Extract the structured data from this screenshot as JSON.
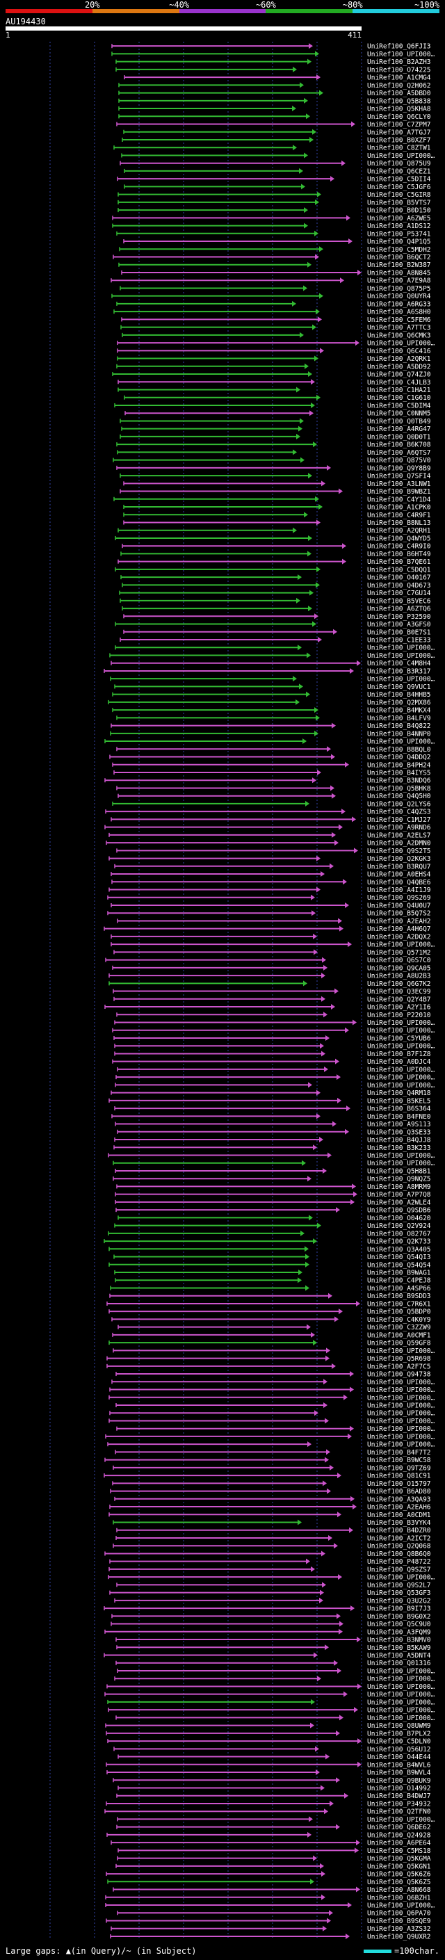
{
  "scale": {
    "labels": [
      "20%",
      "~40%",
      "~60%",
      "~80%",
      "~100%"
    ],
    "colors": [
      "#dd1111",
      "#dd7711",
      "#9933cc",
      "#22aa22",
      "#22ccdd"
    ]
  },
  "query": {
    "id": "AU194430",
    "start": "1",
    "end": "411"
  },
  "legend": {
    "gap_text": "Large gaps: ▲(in Query)/~ (in Subject)",
    "scale_text": "=100char."
  },
  "colors": {
    "magenta": "#cc55cc",
    "green": "#33bb33",
    "purple_line": "#5566ee",
    "grid": "#3344aa"
  },
  "chart_data": {
    "type": "table",
    "hit_ids": [
      "UniRef100_Q6FJI3",
      "UniRef100_UPI000…",
      "UniRef100_B2AZH3",
      "UniRef100_O74225",
      "UniRef100_A1CMG4",
      "UniRef100_Q2H062",
      "UniRef100_A5DBD0",
      "UniRef100_Q5B838",
      "UniRef100_Q5KHA8",
      "UniRef100_Q6CLY0",
      "UniRef100_C7ZPM7",
      "UniRef100_A7TGJ7",
      "UniRef100_B0XZF7",
      "UniRef100_C8ZTW1",
      "UniRef100_UPI000…",
      "UniRef100_Q875U9",
      "UniRef100_Q6CEZ1",
      "UniRef100_C5DII4",
      "UniRef100_C5JGF6",
      "UniRef100_C5GIR8",
      "UniRef100_B5VTS7",
      "UniRef100_B0D150",
      "UniRef100_A6ZWE5",
      "UniRef100_A1DS12",
      "UniRef100_P53741",
      "UniRef100_Q4P1Q5",
      "UniRef100_C5MDH2",
      "UniRef100_B6QCT2",
      "UniRef100_B2W387",
      "UniRef100_A8N845",
      "UniRef100_A7E9A8",
      "UniRef100_Q875P5",
      "UniRef100_Q0UYR4",
      "UniRef100_A6RG33",
      "UniRef100_A6S8H0",
      "UniRef100_C5FEM6",
      "UniRef100_A7TTC3",
      "UniRef100_Q6CMK3",
      "UniRef100_UPI000…",
      "UniRef100_Q6C416",
      "UniRef100_A2QRK1",
      "UniRef100_A5DD92",
      "UniRef100_Q74ZJ0",
      "UniRef100_C4JLB3",
      "UniRef100_C1HA21",
      "UniRef100_C1G610",
      "UniRef100_C5DIM4",
      "UniRef100_C0NNM5",
      "UniRef100_Q0TB49",
      "UniRef100_A4RG47",
      "UniRef100_Q0D0T1",
      "UniRef100_B6K708",
      "UniRef100_A6QTS7",
      "UniRef100_Q875V0",
      "UniRef100_Q9Y8B9",
      "UniRef100_Q7SFI4",
      "UniRef100_A3LNW1",
      "UniRef100_B9WBZ1",
      "UniRef100_C4Y1D4",
      "UniRef100_A1CPK0",
      "UniRef100_C4R9F1",
      "UniRef100_B8NL13",
      "UniRef100_A2QRH1",
      "UniRef100_Q4WYD5",
      "UniRef100_C4R9I0",
      "UniRef100_B6HT49",
      "UniRef100_B7QE61",
      "UniRef100_C5DQQ1",
      "UniRef100_O40167",
      "UniRef100_Q4D673",
      "UniRef100_C7GU14",
      "UniRef100_B5VEC6",
      "UniRef100_A6ZTQ6",
      "UniRef100_P32590",
      "UniRef100_A3GFS0",
      "UniRef100_B0E7S1",
      "UniRef100_C1EE33",
      "UniRef100_UPI000…",
      "UniRef100_UPI000…",
      "UniRef100_C4M8H4",
      "UniRef100_B3R317",
      "UniRef100_UPI000…",
      "UniRef100_Q9VUC1",
      "UniRef100_B4HHB5",
      "UniRef100_Q2MX86",
      "UniRef100_B4MKX4",
      "UniRef100_B4LFV9",
      "UniRef100_B4Q822",
      "UniRef100_B4NNP0",
      "UniRef100_UPI000…",
      "UniRef100_B8BQL0",
      "UniRef100_Q4DDQ2",
      "UniRef100_B4PH24",
      "UniRef100_B4IYS5",
      "UniRef100_B3NDQ6",
      "UniRef100_Q5BHK8",
      "UniRef100_Q4Q5H0",
      "UniRef100_Q2LYS6",
      "UniRef100_C4QZS3",
      "UniRef100_C1MJ27",
      "UniRef100_A9RND6",
      "UniRef100_A2ELS7",
      "UniRef100_A2DMN0",
      "UniRef100_Q9S2T5",
      "UniRef100_Q2KGK3",
      "UniRef100_B3RQU7",
      "UniRef100_A0EHS4",
      "UniRef100_Q4QBE6",
      "UniRef100_A4I1J9",
      "UniRef100_Q9S269",
      "UniRef100_Q4U0U7",
      "UniRef100_B5Q7S2",
      "UniRef100_A2EAH2",
      "UniRef100_A4H6Q7",
      "UniRef100_A2DQX2",
      "UniRef100_UPI000…",
      "UniRef100_Q571M2",
      "UniRef100_Q6S7C0",
      "UniRef100_Q9CA05",
      "UniRef100_A8U2B3",
      "UniRef100_Q6G7K2",
      "UniRef100_Q3EC99",
      "UniRef100_Q2Y4B7",
      "UniRef100_A2Y1I6",
      "UniRef100_P22010",
      "UniRef100_UPI000…",
      "UniRef100_UPI000…",
      "UniRef100_C5YUB6",
      "UniRef100_UPI000…",
      "UniRef100_B7F1Z8",
      "UniRef100_A0DJC4",
      "UniRef100_UPI000…",
      "UniRef100_UPI000…",
      "UniRef100_UPI000…",
      "UniRef100_Q4RM18",
      "UniRef100_B5KEL5",
      "UniRef100_B6S364",
      "UniRef100_B4FNE0",
      "UniRef100_A9S113",
      "UniRef100_Q3SE33",
      "UniRef100_B4QJJ8",
      "UniRef100_B3K233",
      "UniRef100_UPI000…",
      "UniRef100_UPI000…",
      "UniRef100_Q5H8B1",
      "UniRef100_Q9NQZ5",
      "UniRef100_A8MRM9",
      "UniRef100_A7P7Q8",
      "UniRef100_A2WLE4",
      "UniRef100_Q9SDB6",
      "UniRef100_O04620",
      "UniRef100_Q2V924",
      "UniRef100_O82767",
      "UniRef100_Q2K733",
      "UniRef100_Q3A405",
      "UniRef100_Q54QI3",
      "UniRef100_Q54Q54",
      "UniRef100_B9WAG1",
      "UniRef100_C4PEJ8",
      "UniRef100_A4SP66",
      "UniRef100_B9SDD3",
      "UniRef100_C7R6X1",
      "UniRef100_Q5BDP0",
      "UniRef100_C4K0Y9",
      "UniRef100_C3ZZW9",
      "UniRef100_A0CMF1",
      "UniRef100_Q59GF8",
      "UniRef100_UPI000…",
      "UniRef100_Q5R698",
      "UniRef100_A2F7C5",
      "UniRef100_Q94738",
      "UniRef100_UPI000…",
      "UniRef100_UPI000…",
      "UniRef100_UPI000…",
      "UniRef100_UPI000…",
      "UniRef100_UPI000…",
      "UniRef100_UPI000…",
      "UniRef100_UPI000…",
      "UniRef100_UPI000…",
      "UniRef100_UPI000…",
      "UniRef100_B4F7T2",
      "UniRef100_B9WC58",
      "UniRef100_Q9TZ69",
      "UniRef100_Q81C91",
      "UniRef100_O15797",
      "UniRef100_B6AD80",
      "UniRef100_A3QA93",
      "UniRef100_A2EAH6",
      "UniRef100_A0CDM1",
      "UniRef100_B3VYK4",
      "UniRef100_B4DZR0",
      "UniRef100_A2ICT2",
      "UniRef100_Q2Q068",
      "UniRef100_Q8B6Q0",
      "UniRef100_P48722",
      "UniRef100_Q9SZS7",
      "UniRef100_UPI000…",
      "UniRef100_Q9S2L7",
      "UniRef100_Q53GF3",
      "UniRef100_Q3U2G2",
      "UniRef100_B9I7J3",
      "UniRef100_B9G0X2",
      "UniRef100_Q5C9U0",
      "UniRef100_A3FQM9",
      "UniRef100_B3NMV0",
      "UniRef100_B5KAW9",
      "UniRef100_A5DNT4",
      "UniRef100_Q01316",
      "UniRef100_UPI000…",
      "UniRef100_UPI000…",
      "UniRef100_UPI000…",
      "UniRef100_UPI000…",
      "UniRef100_UPI000…",
      "UniRef100_UPI000…",
      "UniRef100_UPI000…",
      "UniRef100_Q8UWM9",
      "UniRef100_B7PLX2",
      "UniRef100_C5DLN0",
      "UniRef100_Q56U12",
      "UniRef100_O44E44",
      "UniRef100_B4WVL6",
      "UniRef100_B9WVL4",
      "UniRef100_Q9BUK9",
      "UniRef100_O14992",
      "UniRef100_B4DWJ7",
      "UniRef100_P34932",
      "UniRef100_Q2TFN0",
      "UniRef100_UPI000…",
      "UniRef100_Q6DE62",
      "UniRef100_Q24928",
      "UniRef100_A6PE64",
      "UniRef100_C5MS18",
      "UniRef100_Q5KGMA",
      "UniRef100_Q5KGN1",
      "UniRef100_Q5K6Z6",
      "UniRef100_Q5K6Z5",
      "UniRef100_A8N668",
      "UniRef100_Q6BZH1",
      "UniRef100_UPI000…",
      "UniRef100_Q6PA70",
      "UniRef100_B9SQE9",
      "UniRef100_A3ZS32",
      "UniRef100_Q9UXR2"
    ]
  }
}
